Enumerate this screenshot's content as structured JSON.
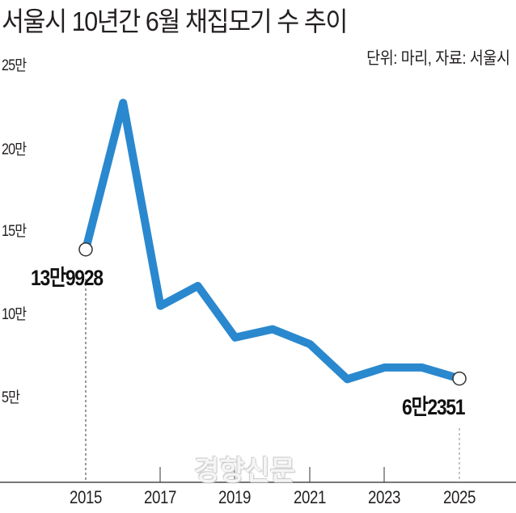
{
  "header": {
    "title": "서울시 10년간 6월 채집모기 수 추이",
    "unit_source": "단위: 마리, 자료: 서울시"
  },
  "axis": {
    "y_ticks": [
      "25만",
      "20만",
      "15만",
      "10만",
      "5만"
    ],
    "x_ticks": [
      "2015",
      "2017",
      "2019",
      "2021",
      "2023",
      "2025"
    ]
  },
  "annotations": {
    "start_label": "13만9928",
    "end_label": "6만2351"
  },
  "watermark": "경향신문",
  "colors": {
    "line": "#2a88cf",
    "axis": "#777777",
    "text": "#231f20"
  },
  "chart_data": {
    "type": "line",
    "title": "서울시 10년간 6월 채집모기 수 추이",
    "subtitle": "단위: 마리, 자료: 서울시",
    "xlabel": "",
    "ylabel": "",
    "x": [
      2015,
      2016,
      2017,
      2018,
      2019,
      2020,
      2021,
      2022,
      2023,
      2024,
      2025
    ],
    "series": [
      {
        "name": "6월 채집모기 수",
        "values": [
          139928,
          228000,
          106000,
          118000,
          87000,
          92000,
          83000,
          62000,
          69000,
          69000,
          62351
        ]
      }
    ],
    "y_tick_labels": [
      "5만",
      "10만",
      "15만",
      "20만",
      "25만"
    ],
    "x_tick_labels": [
      "2015",
      "2017",
      "2019",
      "2021",
      "2023",
      "2025"
    ],
    "ylim": [
      0,
      250000
    ],
    "grid": false,
    "legend": "none",
    "annotations": [
      {
        "x": 2015,
        "text": "13만9928"
      },
      {
        "x": 2025,
        "text": "6만2351"
      }
    ]
  }
}
